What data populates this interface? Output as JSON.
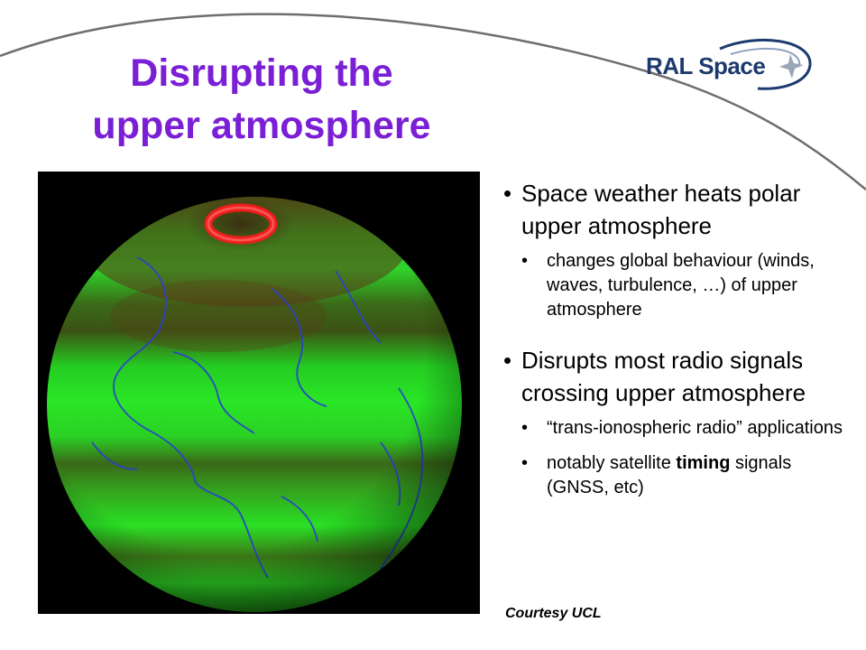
{
  "slide": {
    "title_line1": "Disrupting the",
    "title_line2": "upper atmosphere",
    "logo_text": "RAL Space",
    "bullet_glyph": "•",
    "bullets": [
      {
        "text": "Space weather heats polar upper atmosphere",
        "sub": [
          "changes global behaviour (winds, waves, turbulence, …) of upper atmosphere"
        ]
      },
      {
        "text": "Disrupts most radio signals crossing upper atmosphere",
        "sub": [
          "“trans-ionospheric radio” applications"
        ]
      }
    ],
    "last_sub": {
      "before": "notably satellite ",
      "bold": "timing",
      "after": " signals (GNSS, etc)"
    },
    "credit": "Courtesy UCL"
  },
  "colors": {
    "title": "#7a1fd6",
    "logo_navy": "#1d3a6e",
    "globe_green": "#22e020",
    "globe_dark_band": "#3b5a12",
    "aurora_red": "#ff1a1a",
    "coastline_blue": "#2a3fd0",
    "arc_gray": "#6e6e6e"
  },
  "image": {
    "subject": "globe-upper-atmosphere-heating-map"
  }
}
